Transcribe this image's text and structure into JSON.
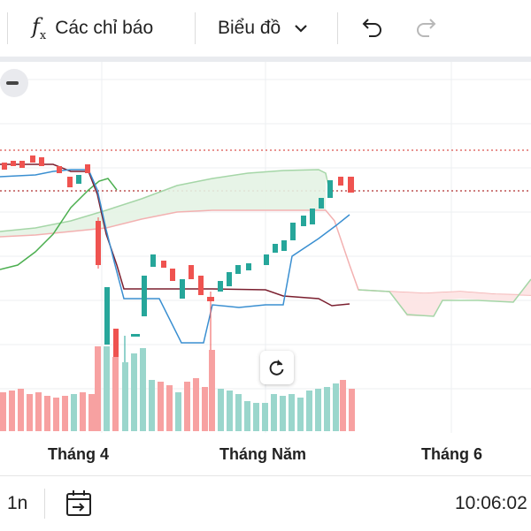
{
  "toolbar": {
    "indicators_label": "Các chỉ báo",
    "chart_type_label": "Biểu đồ",
    "icons": [
      "fx-icon",
      "chevron-down-icon",
      "undo-icon",
      "redo-icon"
    ]
  },
  "chart": {
    "x_labels": [
      "Tháng 4",
      "Tháng Năm",
      "Tháng 6"
    ]
  },
  "bottom": {
    "interval_label": "1n",
    "time": "10:06:02"
  },
  "colors": {
    "up": "#26a69a",
    "down": "#ef5350",
    "cloud_green": "#a5d6a7",
    "cloud_red": "#f8bbbb"
  }
}
